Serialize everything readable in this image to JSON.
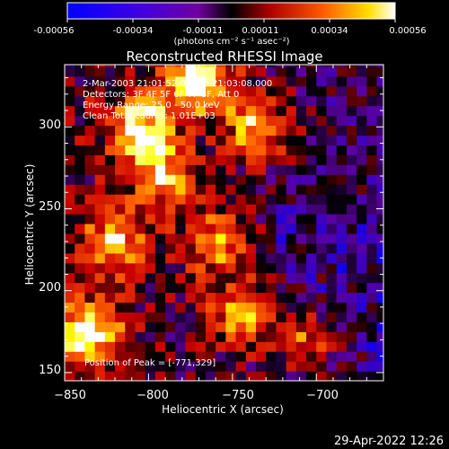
{
  "colorbar": {
    "tick_labels": [
      "-0.00056",
      "-0.00034",
      "-0.00011",
      "0.00011",
      "0.00034",
      "0.00056"
    ],
    "units": "(photons cm⁻² s⁻¹ asec⁻²)",
    "min": -0.00056,
    "max": 0.00056
  },
  "title": "Reconstructed RHESSI Image",
  "annotations": {
    "time_range": "2-Mar-2003 21:01:52.000 to 21:03:08.000",
    "detectors": "Detectors: 3F 4F 5F 6F 7F 8F, Att 0",
    "energy": "Energy Range: 25.0 - 50.0 keV",
    "method": "Clean     Total counts: 1.01E+03",
    "peak": "Position of Peak = [-771,329]"
  },
  "axes": {
    "xlabel": "Heliocentric X (arcsec)",
    "ylabel": "Heliocentric Y (arcsec)",
    "xlim": [
      -850,
      -660
    ],
    "ylim": [
      145,
      338
    ],
    "x_ticks": [
      {
        "value": -850,
        "label": "−850"
      },
      {
        "value": -800,
        "label": "−800"
      },
      {
        "value": -750,
        "label": "−750"
      },
      {
        "value": -700,
        "label": "−700"
      }
    ],
    "y_ticks": [
      {
        "value": 150,
        "label": "150"
      },
      {
        "value": 200,
        "label": "200"
      },
      {
        "value": 250,
        "label": "250"
      },
      {
        "value": 300,
        "label": "300"
      }
    ]
  },
  "footer": {
    "date": "29-Apr-2022 12:26"
  },
  "chart_data": {
    "type": "heatmap",
    "title": "Reconstructed RHESSI Image",
    "xlabel": "Heliocentric X (arcsec)",
    "ylabel": "Heliocentric Y (arcsec)",
    "xlim": [
      -850,
      -660
    ],
    "ylim": [
      145,
      338
    ],
    "peak": [
      -771,
      329
    ],
    "bright_sources": [
      {
        "x": -771,
        "y": 329,
        "relative": 1.0
      },
      {
        "x": -805,
        "y": 300,
        "relative": 0.75
      },
      {
        "x": -790,
        "y": 270,
        "relative": 0.65
      },
      {
        "x": -820,
        "y": 230,
        "relative": 0.6
      },
      {
        "x": -835,
        "y": 175,
        "relative": 0.8
      },
      {
        "x": -760,
        "y": 230,
        "relative": 0.55
      },
      {
        "x": -745,
        "y": 185,
        "relative": 0.6
      },
      {
        "x": -735,
        "y": 300,
        "relative": 0.65
      },
      {
        "x": -705,
        "y": 170,
        "relative": 0.5
      }
    ],
    "colormap": [
      "#0000ff",
      "#5a00a0",
      "#000000",
      "#c80000",
      "#ff6400",
      "#ffff00",
      "#ffffff"
    ]
  }
}
